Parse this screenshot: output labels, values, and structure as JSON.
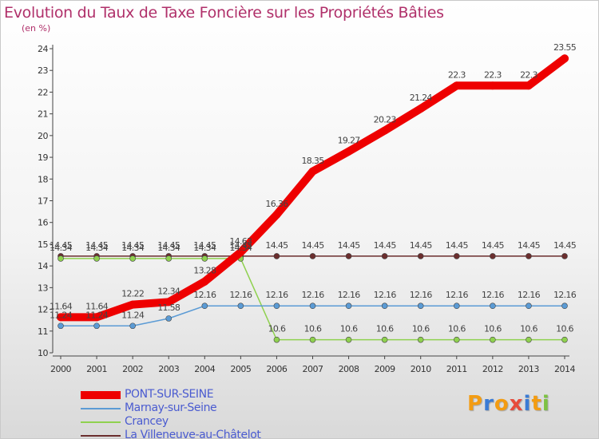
{
  "title": "Evolution du Taux de Taxe Foncière sur les Propriétés Bâties",
  "unit_label": "(en %)",
  "logo": {
    "text": "Proxiti",
    "letters": [
      "P",
      "r",
      "o",
      "x",
      "i",
      "t",
      "i"
    ],
    "colors": [
      "#f39c12",
      "#3a7bd5",
      "#f39c12",
      "#e74c3c",
      "#3a7bd5",
      "#f39c12",
      "#7dc242"
    ]
  },
  "chart_data": {
    "type": "line",
    "title": "Evolution du Taux de Taxe Foncière sur les Propriétés Bâties",
    "ylabel": "(en %)",
    "ylim": [
      10,
      24
    ],
    "yticks": [
      10,
      11,
      12,
      13,
      14,
      15,
      16,
      17,
      18,
      19,
      20,
      21,
      22,
      23,
      24
    ],
    "x": [
      "2000",
      "2001",
      "2002",
      "2003",
      "2004",
      "2005",
      "2006",
      "2007",
      "2008",
      "2009",
      "2010",
      "2011",
      "2012",
      "2013",
      "2014"
    ],
    "grid": false,
    "series": [
      {
        "name": "PONT-SUR-SEINE",
        "color": "#ee0000",
        "values": [
          11.64,
          11.64,
          12.22,
          12.34,
          13.28,
          14.63,
          16.36,
          18.35,
          19.27,
          20.23,
          21.24,
          22.3,
          22.3,
          22.3,
          23.55
        ],
        "labels": [
          "11.64",
          "11.64",
          "12.22",
          "12.34",
          "13.28",
          "14.63",
          "16.36",
          "18.35",
          "19.27",
          "20.23",
          "21.24",
          "22.3",
          "22.3",
          "22.3",
          "23.55"
        ]
      },
      {
        "name": "Marnay-sur-Seine",
        "color": "#5b9bd5",
        "values": [
          11.24,
          11.24,
          11.24,
          11.58,
          12.16,
          12.16,
          12.16,
          12.16,
          12.16,
          12.16,
          12.16,
          12.16,
          12.16,
          12.16,
          12.16
        ],
        "labels": [
          "11.24",
          "11.24",
          "11.24",
          "11.58",
          "12.16",
          "12.16",
          "12.16",
          "12.16",
          "12.16",
          "12.16",
          "12.16",
          "12.16",
          "12.16",
          "12.16",
          "12.16"
        ]
      },
      {
        "name": "Crancey",
        "color": "#8fd14f",
        "values": [
          14.34,
          14.34,
          14.34,
          14.34,
          14.34,
          14.34,
          10.6,
          10.6,
          10.6,
          10.6,
          10.6,
          10.6,
          10.6,
          10.6,
          10.6
        ],
        "labels": [
          "14.34",
          "14.34",
          "14.34",
          "14.34",
          "14.34",
          "14.34",
          "10.6",
          "10.6",
          "10.6",
          "10.6",
          "10.6",
          "10.6",
          "10.6",
          "10.6",
          "10.6"
        ]
      },
      {
        "name": "La Villeneuve-au-Châtelot",
        "color": "#6b2e2e",
        "values": [
          14.45,
          14.45,
          14.45,
          14.45,
          14.45,
          14.45,
          14.45,
          14.45,
          14.45,
          14.45,
          14.45,
          14.45,
          14.45,
          14.45,
          14.45
        ],
        "labels": [
          "14.45",
          "14.45",
          "14.45",
          "14.45",
          "14.45",
          "14.45",
          "14.45",
          "14.45",
          "14.45",
          "14.45",
          "14.45",
          "14.45",
          "14.45",
          "14.45",
          "14.45"
        ]
      }
    ]
  }
}
